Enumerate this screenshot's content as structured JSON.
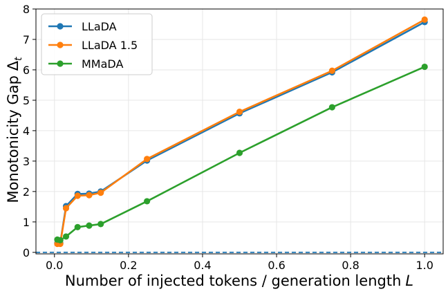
{
  "chart_data": {
    "type": "line",
    "xlabel": "Number of injected tokens / generation length",
    "xlabel_var": "L",
    "ylabel": "Monotonicity Gap Δ",
    "ylabel_sub": "t",
    "xlim": [
      -0.05,
      1.05
    ],
    "ylim": [
      -0.05,
      8
    ],
    "xticks": [
      0.0,
      0.2,
      0.4,
      0.6,
      0.8,
      1.0
    ],
    "xtick_labels": [
      "0.0",
      "0.2",
      "0.4",
      "0.6",
      "0.8",
      "1.0"
    ],
    "yticks": [
      0,
      1,
      2,
      3,
      4,
      5,
      6,
      7,
      8
    ],
    "ytick_labels": [
      "0",
      "1",
      "2",
      "3",
      "4",
      "5",
      "6",
      "7",
      "8"
    ],
    "grid": true,
    "legend_position": "top-left",
    "reference_line": {
      "y": 0,
      "style": "dashed",
      "color": "#1f77b4"
    },
    "x": [
      0.0078,
      0.0156,
      0.03125,
      0.0625,
      0.09375,
      0.125,
      0.25,
      0.5,
      0.75,
      1.0
    ],
    "series": [
      {
        "name": "LLaDA",
        "color": "#1f77b4",
        "values": [
          0.3,
          0.3,
          1.52,
          1.92,
          1.93,
          2.0,
          3.02,
          4.57,
          5.92,
          7.57
        ]
      },
      {
        "name": "LLaDA 1.5",
        "color": "#ff7f0e",
        "values": [
          0.28,
          0.28,
          1.45,
          1.86,
          1.88,
          1.96,
          3.07,
          4.62,
          5.97,
          7.65
        ]
      },
      {
        "name": "MMaDA",
        "color": "#2ca02c",
        "values": [
          0.42,
          0.4,
          0.52,
          0.83,
          0.88,
          0.93,
          1.68,
          3.27,
          4.77,
          6.1
        ]
      }
    ]
  }
}
